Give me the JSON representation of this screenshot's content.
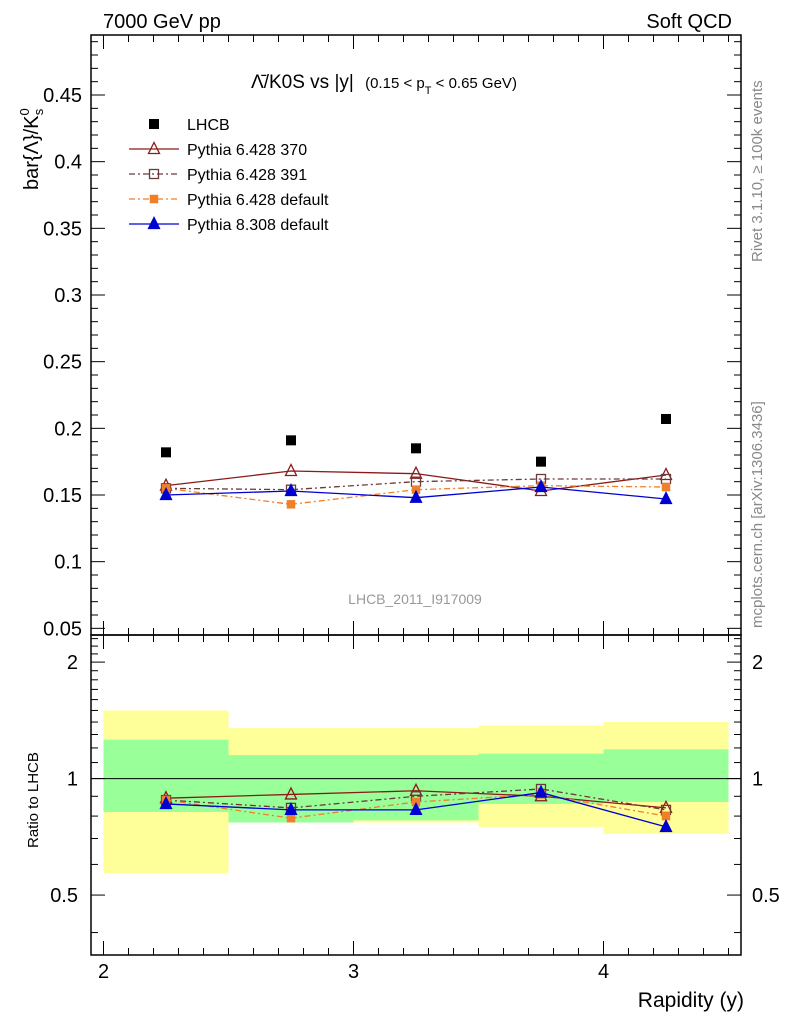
{
  "header": {
    "left": "7000 GeV pp",
    "right": "Soft QCD"
  },
  "side_labels": {
    "rivet": "Rivet 3.1.10, ≥ 100k events",
    "source": "mcplots.cern.ch [arXiv:1306.3436]"
  },
  "chart_data": {
    "type": "line",
    "title_main": "Λ̄/K0S vs |y|",
    "title_cut": "(0.15 < p",
    "title_cut_sub": "T",
    "title_cut_end": " < 0.65 GeV)",
    "ylabel": "bar{Λ}/K",
    "ylabel_sup": "0",
    "ylabel_sub": "s",
    "xlabel": "Rapidity (y)",
    "ratio_ylabel": "Ratio to LHCB",
    "analysis_label": "LHCB_2011_I917009",
    "x": [
      2.25,
      2.75,
      3.25,
      3.75,
      4.25
    ],
    "x_bins": [
      [
        2.0,
        2.5
      ],
      [
        2.5,
        3.0
      ],
      [
        3.0,
        3.5
      ],
      [
        3.5,
        4.0
      ],
      [
        4.0,
        4.5
      ]
    ],
    "xlim": [
      1.95,
      4.55
    ],
    "ylim": [
      0.045,
      0.495
    ],
    "ratio_ylim": [
      0.35,
      2.35
    ],
    "x_ticks": [
      "2",
      "3",
      "4"
    ],
    "y_ticks": [
      "0.05",
      "0.1",
      "0.15",
      "0.2",
      "0.25",
      "0.3",
      "0.35",
      "0.4",
      "0.45"
    ],
    "ratio_ticks": [
      "0.5",
      "1",
      "2"
    ],
    "legend_position": "top-left",
    "grid": false,
    "data": {
      "name": "LHCB",
      "values": [
        0.182,
        0.191,
        0.185,
        0.175,
        0.207
      ],
      "band_stat_sys": [
        [
          0.82,
          1.26
        ],
        [
          0.77,
          1.15
        ],
        [
          0.78,
          1.15
        ],
        [
          0.86,
          1.16
        ],
        [
          0.87,
          1.19
        ]
      ],
      "band_total": [
        [
          0.57,
          1.5
        ],
        [
          0.77,
          1.35
        ],
        [
          0.77,
          1.35
        ],
        [
          0.75,
          1.37
        ],
        [
          0.72,
          1.4
        ]
      ]
    },
    "series": [
      {
        "name": "Pythia 6.428 370",
        "values": [
          0.157,
          0.168,
          0.166,
          0.153,
          0.165
        ],
        "ratio": [
          0.89,
          0.91,
          0.93,
          0.9,
          0.84
        ],
        "color": "#8b1a1a",
        "marker": "triangle-open",
        "dash": ""
      },
      {
        "name": "Pythia 6.428 391",
        "values": [
          0.155,
          0.154,
          0.16,
          0.162,
          0.162
        ],
        "ratio": [
          0.88,
          0.84,
          0.9,
          0.94,
          0.83
        ],
        "color": "#6b3a3a",
        "marker": "square-open",
        "dash": "6,3,2,3"
      },
      {
        "name": "Pythia 6.428 default",
        "values": [
          0.155,
          0.143,
          0.154,
          0.157,
          0.156
        ],
        "ratio": [
          0.88,
          0.79,
          0.87,
          0.91,
          0.8
        ],
        "color": "#f07f2a",
        "marker": "square-filled",
        "dash": "6,3,2,3"
      },
      {
        "name": "Pythia 8.308 default",
        "values": [
          0.15,
          0.153,
          0.148,
          0.156,
          0.147
        ],
        "ratio": [
          0.86,
          0.83,
          0.83,
          0.92,
          0.75
        ],
        "color": "#0000d0",
        "marker": "triangle-filled",
        "dash": ""
      }
    ]
  }
}
